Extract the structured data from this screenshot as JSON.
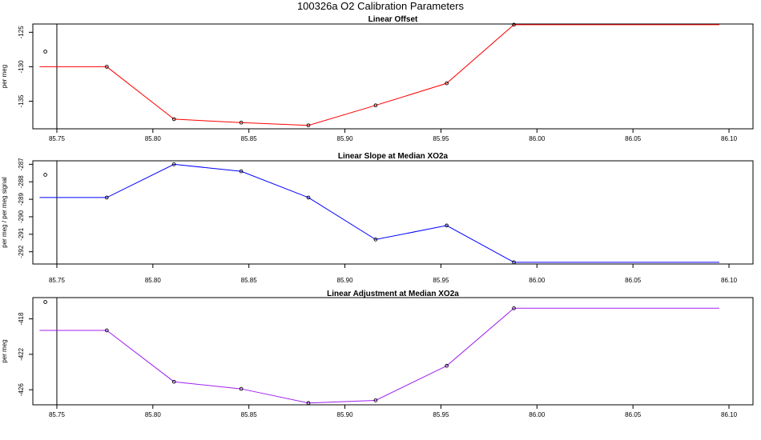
{
  "title": "100326a   O2 Calibration Parameters",
  "chart_data": [
    {
      "type": "line",
      "title": "Linear Offset",
      "xlabel": "",
      "ylabel": "per meg",
      "xlim": [
        85.7375,
        86.1125
      ],
      "ylim": [
        -139.0,
        -123.8
      ],
      "xticks": [
        "85.75",
        "85.80",
        "85.85",
        "85.90",
        "85.95",
        "86.00",
        "86.05",
        "86.10"
      ],
      "yticks": [
        "-125",
        "-130",
        "-135"
      ],
      "vline_x": 85.75,
      "color": "#ff0000",
      "line": {
        "x": [
          85.741,
          85.776,
          85.811,
          85.846,
          85.881,
          85.916,
          85.953,
          85.988,
          86.095
        ],
        "y": [
          -130.0,
          -130.0,
          -137.6,
          -138.1,
          -138.5,
          -135.6,
          -132.4,
          -123.9,
          -123.9
        ]
      },
      "points": {
        "x": [
          85.744,
          85.776,
          85.811,
          85.846,
          85.881,
          85.916,
          85.953,
          85.988
        ],
        "y": [
          -127.8,
          -130.0,
          -137.6,
          -138.1,
          -138.5,
          -135.6,
          -132.4,
          -123.9
        ]
      }
    },
    {
      "type": "line",
      "title": "Linear Slope at Median XO2a",
      "xlabel": "",
      "ylabel": "per meg / per meg signal",
      "xlim": [
        85.7375,
        86.1125
      ],
      "ylim": [
        -292.7,
        -286.8
      ],
      "xticks": [
        "85.75",
        "85.80",
        "85.85",
        "85.90",
        "85.95",
        "86.00",
        "86.05",
        "86.10"
      ],
      "yticks": [
        "-287",
        "-288",
        "-289",
        "-290",
        "-291",
        "-292"
      ],
      "vline_x": 85.75,
      "color": "#0000ff",
      "line": {
        "x": [
          85.741,
          85.776,
          85.811,
          85.846,
          85.881,
          85.916,
          85.953,
          85.988,
          86.095
        ],
        "y": [
          -288.9,
          -288.9,
          -287.0,
          -287.4,
          -288.9,
          -291.3,
          -290.5,
          -292.6,
          -292.6
        ]
      },
      "points": {
        "x": [
          85.744,
          85.776,
          85.811,
          85.846,
          85.881,
          85.916,
          85.953,
          85.988
        ],
        "y": [
          -287.6,
          -288.9,
          -287.0,
          -287.4,
          -288.9,
          -291.3,
          -290.5,
          -292.6
        ]
      }
    },
    {
      "type": "line",
      "title": "Linear Adjustment at Median XO2a",
      "xlabel": "",
      "ylabel": "per meg",
      "xlim": [
        85.7375,
        86.1125
      ],
      "ylim": [
        -427.7,
        -415.6
      ],
      "xticks": [
        "85.75",
        "85.80",
        "85.85",
        "85.90",
        "85.95",
        "86.00",
        "86.05",
        "86.10"
      ],
      "yticks": [
        "-418",
        "-422",
        "-426"
      ],
      "vline_x": 85.75,
      "color": "#a020f0",
      "line": {
        "x": [
          85.741,
          85.776,
          85.811,
          85.846,
          85.881,
          85.916,
          85.953,
          85.988,
          86.095
        ],
        "y": [
          -419.3,
          -419.3,
          -425.1,
          -425.9,
          -427.5,
          -427.2,
          -423.3,
          -416.8,
          -416.8
        ]
      },
      "points": {
        "x": [
          85.744,
          85.776,
          85.811,
          85.846,
          85.881,
          85.916,
          85.953,
          85.988
        ],
        "y": [
          -416.1,
          -419.3,
          -425.1,
          -425.9,
          -427.5,
          -427.2,
          -423.3,
          -416.8
        ]
      }
    }
  ]
}
